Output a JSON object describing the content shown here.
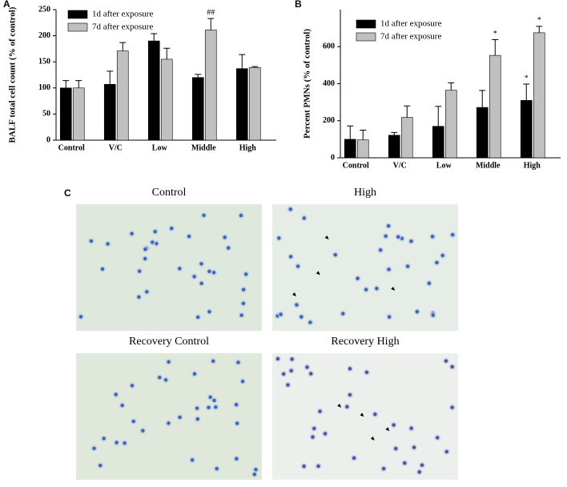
{
  "chart_data": [
    {
      "type": "bar",
      "panel_label": "A",
      "y_label": "BALF total cell count (% of control)",
      "categories": [
        "Control",
        "V/C",
        "Low",
        "Middle",
        "High"
      ],
      "series": [
        {
          "name": "1d after exposure",
          "color": "#000000",
          "values": [
            100,
            107,
            190,
            120,
            137
          ],
          "errors": [
            14,
            25,
            14,
            6,
            27
          ],
          "significance": [
            null,
            null,
            null,
            null,
            null
          ]
        },
        {
          "name": "7d after exposure",
          "color": "#c0c0c0",
          "values": [
            100,
            171,
            155,
            211,
            139
          ],
          "errors": [
            14,
            16,
            21,
            22,
            2
          ],
          "significance": [
            null,
            null,
            null,
            "##",
            null
          ]
        }
      ],
      "ylim": [
        0,
        250
      ],
      "yticks": [
        0,
        50,
        100,
        150,
        200,
        250
      ]
    },
    {
      "type": "bar",
      "panel_label": "B",
      "y_label": "Percent PMNs (% of control)",
      "categories": [
        "Control",
        "V/C",
        "Low",
        "Middle",
        "High"
      ],
      "series": [
        {
          "name": "1d after exposure",
          "color": "#000000",
          "values": [
            100,
            122,
            170,
            272,
            310
          ],
          "errors": [
            72,
            15,
            108,
            92,
            88
          ],
          "significance": [
            null,
            null,
            null,
            null,
            "*"
          ]
        },
        {
          "name": "7d after exposure",
          "color": "#c0c0c0",
          "values": [
            97,
            218,
            365,
            553,
            675
          ],
          "errors": [
            52,
            62,
            40,
            85,
            35
          ],
          "significance": [
            null,
            null,
            null,
            "*",
            "*"
          ]
        }
      ],
      "ylim": [
        0,
        800
      ],
      "yticks": [
        0,
        200,
        400,
        600
      ]
    }
  ],
  "micrographs": {
    "panel_label": "C",
    "titles": [
      "Control",
      "High",
      "Recovery Control",
      "Recovery High"
    ]
  }
}
